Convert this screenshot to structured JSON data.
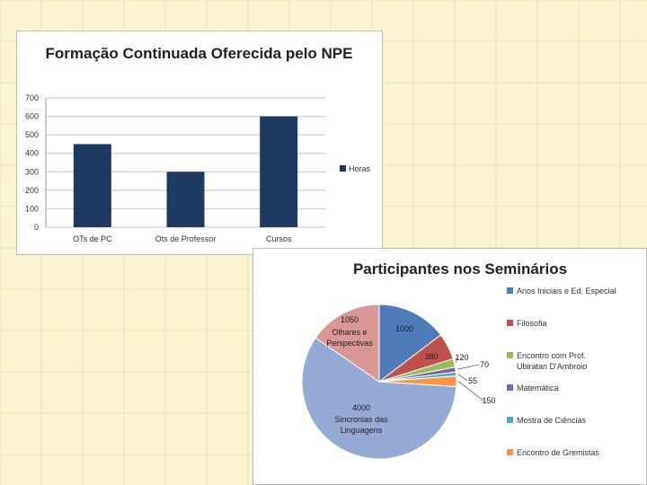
{
  "colors": {
    "background": "#fbf3cf",
    "grid_line": "#ece2b6",
    "bar": "#1f3a60"
  },
  "chart_data": [
    {
      "type": "bar",
      "title": "Formação Continuada Oferecida pelo NPE",
      "categories": [
        "OTs de PC",
        "Ots de Professor",
        "Cursos"
      ],
      "series": [
        {
          "name": "Horas",
          "values": [
            450,
            300,
            600
          ],
          "color": "#1f3a60"
        }
      ],
      "ylim": [
        0,
        700
      ],
      "yticks": [
        0,
        100,
        200,
        300,
        400,
        500,
        600,
        700
      ],
      "grid": true,
      "legend": "right"
    },
    {
      "type": "pie",
      "title": "Participantes nos Seminários",
      "slices": [
        {
          "label": "Anos Iniciais e Ed. Especial",
          "value": 1000,
          "color": "#4f7bb8"
        },
        {
          "label": "Filosofia",
          "value": 380,
          "color": "#c0504d"
        },
        {
          "label": "Encontro com Prof. Ubiratan D'Ambroio",
          "value": 120,
          "color": "#9bbb59"
        },
        {
          "label": "Matemática",
          "value": 70,
          "color": "#8064a2"
        },
        {
          "label": "Mostra de Ciências",
          "value": 55,
          "color": "#4bacc6"
        },
        {
          "label": "Encontro de Gremistas",
          "value": 150,
          "color": "#f79646"
        },
        {
          "label": "Sincronias das Linguagens",
          "value": 4000,
          "color": "#95abd5"
        },
        {
          "label": "Olhares e Perspectivas",
          "value": 1050,
          "color": "#d99795"
        }
      ],
      "legend": "right"
    }
  ]
}
